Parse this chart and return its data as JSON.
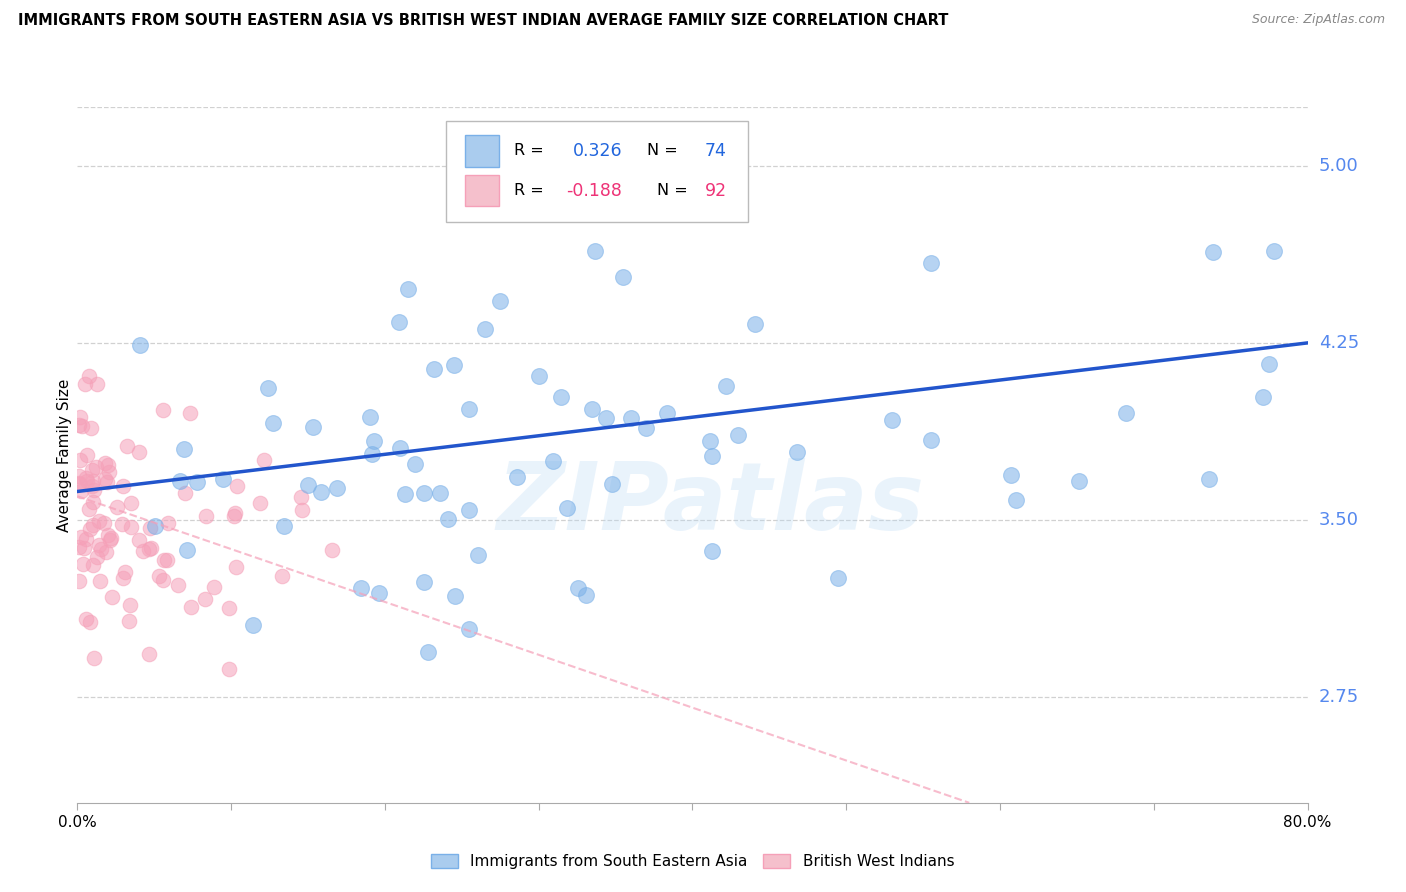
{
  "title": "IMMIGRANTS FROM SOUTH EASTERN ASIA VS BRITISH WEST INDIAN AVERAGE FAMILY SIZE CORRELATION CHART",
  "source": "Source: ZipAtlas.com",
  "ylabel": "Average Family Size",
  "yticks": [
    2.75,
    3.5,
    4.25,
    5.0
  ],
  "xlim": [
    0.0,
    0.8
  ],
  "ylim": [
    2.3,
    5.25
  ],
  "watermark": "ZIPatlas",
  "blue_color": "#7ab0e8",
  "pink_color": "#f5a0b8",
  "trendline_blue_color": "#2255cc",
  "trendline_pink_color": "#f5a0b8",
  "blue_r": 0.326,
  "blue_n": 74,
  "pink_r": -0.188,
  "pink_n": 92,
  "background_color": "#ffffff",
  "grid_color": "#cccccc",
  "ytick_color": "#5588ee",
  "legend_r1_val": "0.326",
  "legend_r2_val": "-0.188",
  "legend_n1_val": "74",
  "legend_n2_val": "92",
  "legend_val_color_blue": "#2266dd",
  "legend_val_color_pink": "#ee3377"
}
